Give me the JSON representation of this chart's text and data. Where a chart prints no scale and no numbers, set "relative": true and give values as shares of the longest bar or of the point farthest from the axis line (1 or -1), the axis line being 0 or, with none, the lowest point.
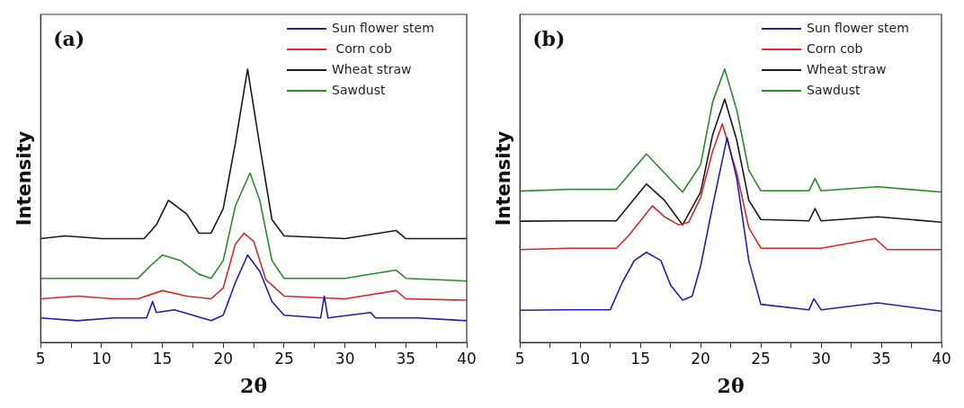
{
  "chart_data": [
    {
      "type": "line",
      "title": "(a)",
      "xlabel": "2θ",
      "ylabel": "Intensity",
      "relative": true,
      "xlim": [
        5,
        40
      ],
      "xticks": [
        5,
        {
          "value": 7.5,
          "label": null
        },
        10,
        {
          "value": 12.5,
          "label": null
        },
        15,
        {
          "value": 17.5,
          "label": null
        },
        20,
        {
          "value": 22.5,
          "label": null
        },
        25,
        {
          "value": 27.5,
          "label": null
        },
        30,
        {
          "value": 32.5,
          "label": null
        },
        35,
        {
          "value": 37.5,
          "label": null
        },
        40
      ],
      "grid": false,
      "legend": "top right",
      "marker": "none",
      "line_style": "solid",
      "series": [
        {
          "name": "Sun flower stem",
          "color": "#1f1fa8",
          "x": [
            5,
            8,
            11,
            13.7,
            14.2,
            14.5,
            16,
            17.5,
            19,
            20,
            21,
            22,
            23,
            24,
            25,
            28,
            28.3,
            28.6,
            32.1,
            32.5,
            36,
            40
          ],
          "values": [
            0.09,
            0.08,
            0.09,
            0.09,
            0.15,
            0.11,
            0.12,
            0.1,
            0.08,
            0.1,
            0.22,
            0.32,
            0.26,
            0.15,
            0.1,
            0.09,
            0.17,
            0.09,
            0.11,
            0.09,
            0.09,
            0.08
          ]
        },
        {
          "name": " Corn cob",
          "color": "#d42a2a",
          "x": [
            5,
            8,
            11,
            13,
            15,
            17,
            19,
            20,
            21,
            21.7,
            22.5,
            23.5,
            25,
            30,
            34.2,
            35,
            40
          ],
          "values": [
            0.16,
            0.17,
            0.16,
            0.16,
            0.19,
            0.17,
            0.16,
            0.2,
            0.36,
            0.4,
            0.37,
            0.23,
            0.17,
            0.16,
            0.19,
            0.16,
            0.155
          ]
        },
        {
          "name": "Wheat straw",
          "color": "#1a1a1a",
          "x": [
            5,
            7,
            10,
            13.5,
            14.5,
            15.5,
            17,
            18,
            19,
            20,
            21,
            22,
            23,
            24,
            25,
            30,
            34.2,
            35,
            40
          ],
          "values": [
            0.38,
            0.39,
            0.38,
            0.38,
            0.43,
            0.52,
            0.47,
            0.4,
            0.4,
            0.49,
            0.73,
            1,
            0.72,
            0.45,
            0.39,
            0.38,
            0.41,
            0.38,
            0.38
          ]
        },
        {
          "name": "Sawdust",
          "color": "#2a8a2a",
          "x": [
            5,
            9,
            13,
            14,
            15,
            16.5,
            18,
            19,
            20,
            21,
            22.2,
            23,
            24,
            25,
            30,
            34.2,
            35,
            40
          ],
          "values": [
            0.235,
            0.235,
            0.235,
            0.28,
            0.32,
            0.3,
            0.25,
            0.235,
            0.3,
            0.5,
            0.62,
            0.52,
            0.3,
            0.235,
            0.235,
            0.265,
            0.235,
            0.225
          ]
        }
      ]
    },
    {
      "type": "line",
      "title": "(b)",
      "xlabel": "2θ",
      "ylabel": "Intensity",
      "relative": true,
      "xlim": [
        5,
        40
      ],
      "xticks": [
        5,
        {
          "value": 7.5,
          "label": null
        },
        10,
        {
          "value": 12.5,
          "label": null
        },
        15,
        {
          "value": 17.5,
          "label": null
        },
        20,
        {
          "value": 22.5,
          "label": null
        },
        25,
        {
          "value": 27.5,
          "label": null
        },
        30,
        {
          "value": 32.5,
          "label": null
        },
        35,
        {
          "value": 37.5,
          "label": null
        },
        40
      ],
      "grid": false,
      "legend": "top right",
      "marker": "none",
      "line_style": "solid",
      "series": [
        {
          "name": "Sun flower stem",
          "color": "#2020b0",
          "x": [
            5,
            9,
            12.5,
            13.5,
            14.5,
            15.5,
            16.7,
            17.5,
            18.5,
            19.3,
            20,
            21,
            22.2,
            23,
            24,
            25,
            29,
            29.4,
            30,
            34.7,
            40
          ],
          "values": [
            0.118,
            0.12,
            0.12,
            0.22,
            0.3,
            0.33,
            0.3,
            0.21,
            0.155,
            0.17,
            0.28,
            0.5,
            0.75,
            0.6,
            0.3,
            0.14,
            0.12,
            0.16,
            0.12,
            0.145,
            0.115
          ]
        },
        {
          "name": "Corn cob",
          "color": "#d42a2a",
          "x": [
            5,
            9,
            13,
            14,
            16,
            17,
            18.2,
            19,
            20,
            21,
            21.8,
            23,
            24,
            25,
            30,
            34.5,
            35.5,
            40
          ],
          "values": [
            0.34,
            0.345,
            0.345,
            0.39,
            0.5,
            0.46,
            0.43,
            0.44,
            0.53,
            0.7,
            0.8,
            0.62,
            0.42,
            0.345,
            0.345,
            0.38,
            0.34,
            0.34
          ]
        },
        {
          "name": "Wheat straw",
          "color": "#1a1a1a",
          "x": [
            5,
            9,
            13,
            15.5,
            17,
            18.5,
            20,
            21,
            22,
            23,
            24,
            25,
            29,
            29.5,
            30,
            34.7,
            40
          ],
          "values": [
            0.444,
            0.445,
            0.445,
            0.58,
            0.52,
            0.43,
            0.55,
            0.76,
            0.89,
            0.74,
            0.52,
            0.45,
            0.445,
            0.49,
            0.445,
            0.46,
            0.44
          ]
        },
        {
          "name": "Sawdust",
          "color": "#2a8a2a",
          "x": [
            5,
            9,
            13,
            15.5,
            17,
            18.5,
            20,
            21,
            22,
            23,
            24,
            25,
            29,
            29.5,
            30,
            34.7,
            40
          ],
          "values": [
            0.554,
            0.56,
            0.56,
            0.69,
            0.62,
            0.55,
            0.65,
            0.88,
            1,
            0.85,
            0.63,
            0.555,
            0.555,
            0.6,
            0.555,
            0.57,
            0.55
          ]
        }
      ]
    }
  ]
}
